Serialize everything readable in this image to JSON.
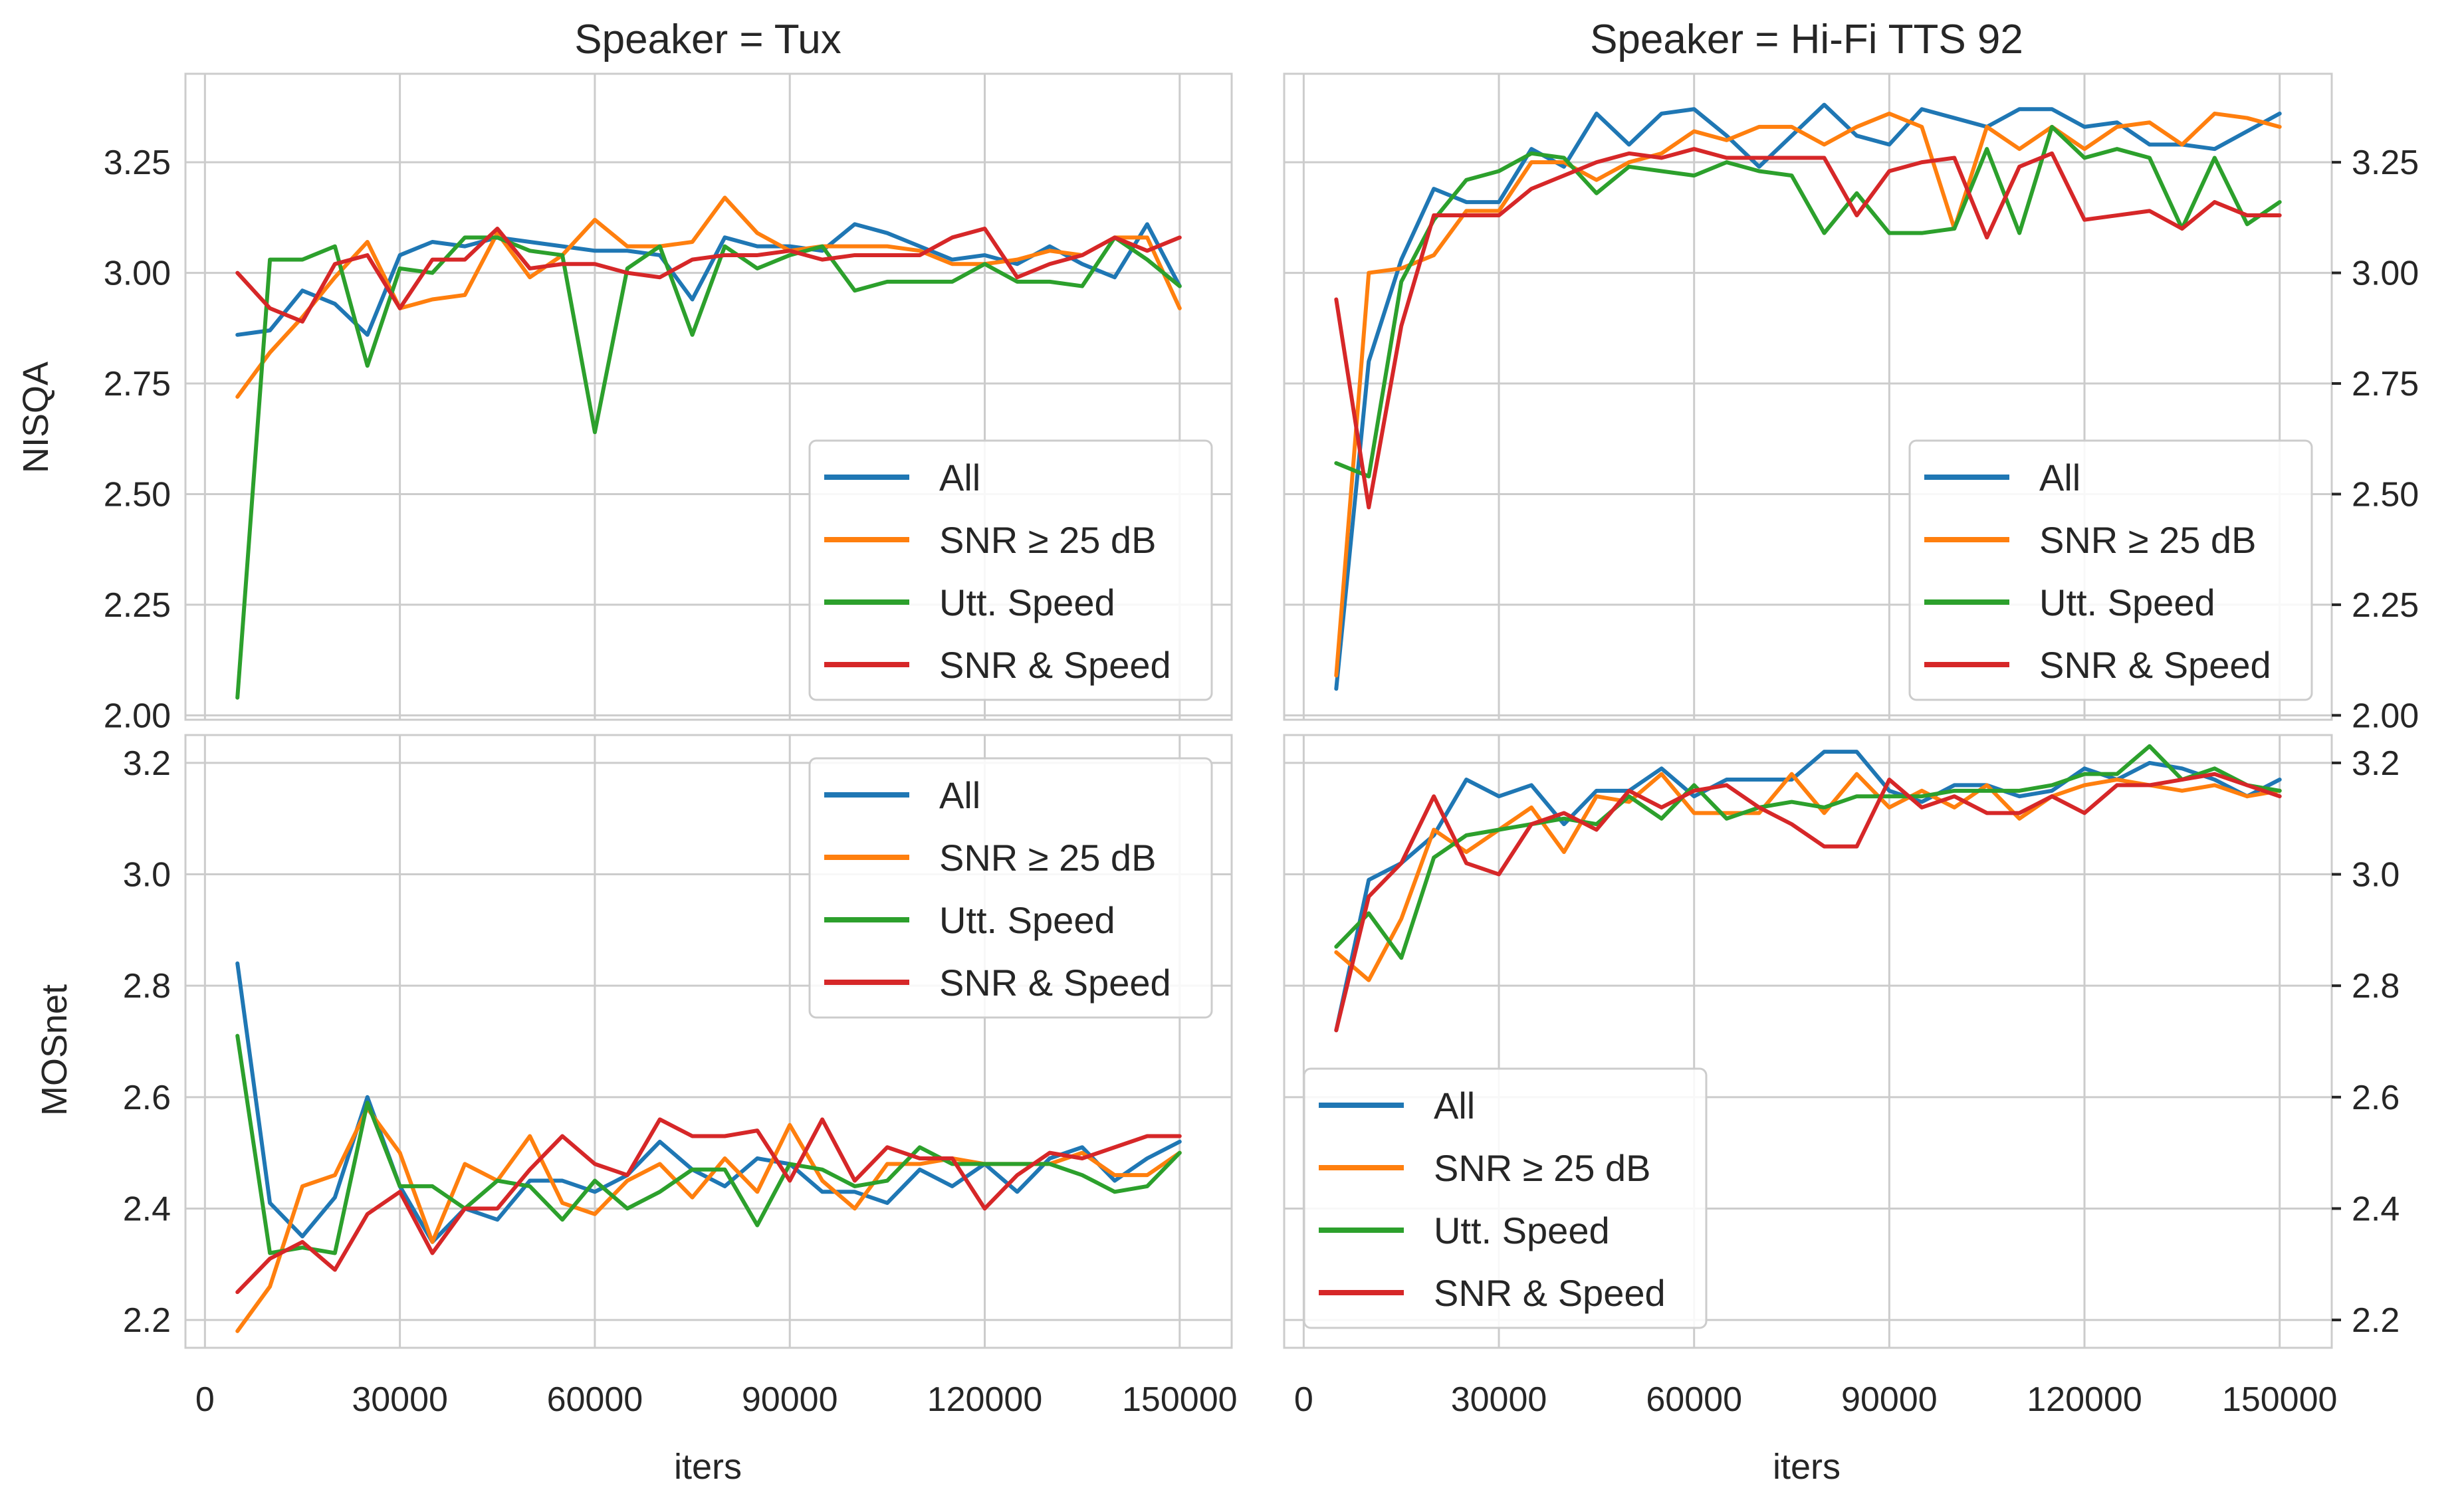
{
  "figure": {
    "row_labels": [
      "NISQA",
      "MOSnet"
    ],
    "col_titles": [
      "Speaker = Tux",
      "Speaker = Hi-Fi TTS 92"
    ],
    "xlabel": "iters",
    "legend_labels": [
      "All",
      "SNR ≥ 25 dB",
      "Utt. Speed",
      "SNR & Speed"
    ]
  },
  "colors": {
    "All": "#1f77b4",
    "SNR ≥ 25 dB": "#ff7f0e",
    "Utt. Speed": "#2ca02c",
    "SNR & Speed": "#d62728",
    "grid": "#cccccc",
    "text": "#262626"
  },
  "chart_data": [
    {
      "type": "line",
      "title": "Speaker = Tux",
      "xlabel": "",
      "ylabel": "NISQA",
      "xlim": [
        -3000,
        158000
      ],
      "ylim": [
        1.99,
        3.45
      ],
      "xticks": [
        0,
        30000,
        60000,
        90000,
        120000,
        150000
      ],
      "yticks": [
        2.0,
        2.25,
        2.5,
        2.75,
        3.0,
        3.25
      ],
      "ytick_labels": [
        "2.00",
        "2.25",
        "2.50",
        "2.75",
        "3.00",
        "3.25"
      ],
      "grid": true,
      "legend_position": "lower right",
      "x": [
        5000,
        10000,
        15000,
        20000,
        25000,
        30000,
        35000,
        40000,
        45000,
        50000,
        55000,
        60000,
        65000,
        70000,
        75000,
        80000,
        85000,
        90000,
        95000,
        100000,
        105000,
        110000,
        115000,
        120000,
        125000,
        130000,
        135000,
        140000,
        145000,
        150000
      ],
      "series": [
        {
          "name": "All",
          "values": [
            2.86,
            2.87,
            2.96,
            2.93,
            2.86,
            3.04,
            3.07,
            3.06,
            3.08,
            3.07,
            3.06,
            3.05,
            3.05,
            3.04,
            2.94,
            3.08,
            3.06,
            3.06,
            3.05,
            3.11,
            3.09,
            3.06,
            3.03,
            3.04,
            3.02,
            3.06,
            3.02,
            2.99,
            3.11,
            2.97
          ]
        },
        {
          "name": "SNR ≥ 25 dB",
          "values": [
            2.72,
            2.82,
            2.9,
            2.99,
            3.07,
            2.92,
            2.94,
            2.95,
            3.09,
            2.99,
            3.04,
            3.12,
            3.06,
            3.06,
            3.07,
            3.17,
            3.09,
            3.05,
            3.06,
            3.06,
            3.06,
            3.05,
            3.02,
            3.02,
            3.03,
            3.05,
            3.04,
            3.08,
            3.08,
            2.92
          ]
        },
        {
          "name": "Utt. Speed",
          "values": [
            2.04,
            3.03,
            3.03,
            3.06,
            2.79,
            3.01,
            3.0,
            3.08,
            3.08,
            3.05,
            3.04,
            2.64,
            3.01,
            3.06,
            2.86,
            3.06,
            3.01,
            3.04,
            3.06,
            2.96,
            2.98,
            2.98,
            2.98,
            3.02,
            2.98,
            2.98,
            2.97,
            3.08,
            3.03,
            2.97
          ]
        },
        {
          "name": "SNR & Speed",
          "values": [
            3.0,
            2.92,
            2.89,
            3.02,
            3.04,
            2.92,
            3.03,
            3.03,
            3.1,
            3.01,
            3.02,
            3.02,
            3.0,
            2.99,
            3.03,
            3.04,
            3.04,
            3.05,
            3.03,
            3.04,
            3.04,
            3.04,
            3.08,
            3.1,
            2.99,
            3.02,
            3.04,
            3.08,
            3.05,
            3.08
          ]
        }
      ]
    },
    {
      "type": "line",
      "title": "Speaker = Hi-Fi TTS 92",
      "xlabel": "",
      "ylabel": "",
      "xlim": [
        -3000,
        158000
      ],
      "ylim": [
        1.99,
        3.45
      ],
      "xticks": [
        0,
        30000,
        60000,
        90000,
        120000,
        150000
      ],
      "yticks": [
        2.0,
        2.25,
        2.5,
        2.75,
        3.0,
        3.25
      ],
      "ytick_labels": [
        "2.00",
        "2.25",
        "2.50",
        "2.75",
        "3.00",
        "3.25"
      ],
      "grid": true,
      "legend_position": "lower right",
      "x": [
        5000,
        10000,
        15000,
        20000,
        25000,
        30000,
        35000,
        40000,
        45000,
        50000,
        55000,
        60000,
        65000,
        70000,
        75000,
        80000,
        85000,
        90000,
        95000,
        100000,
        105000,
        110000,
        115000,
        120000,
        125000,
        130000,
        135000,
        140000,
        145000,
        150000
      ],
      "series": [
        {
          "name": "All",
          "values": [
            2.06,
            2.8,
            3.03,
            3.19,
            3.16,
            3.16,
            3.28,
            3.24,
            3.36,
            3.29,
            3.36,
            3.37,
            3.31,
            3.24,
            3.31,
            3.38,
            3.31,
            3.29,
            3.37,
            3.35,
            3.33,
            3.37,
            3.37,
            3.33,
            3.34,
            3.29,
            3.29,
            3.28,
            3.32,
            3.36
          ]
        },
        {
          "name": "SNR ≥ 25 dB",
          "values": [
            2.09,
            3.0,
            3.01,
            3.04,
            3.14,
            3.14,
            3.25,
            3.25,
            3.21,
            3.25,
            3.27,
            3.32,
            3.3,
            3.33,
            3.33,
            3.29,
            3.33,
            3.36,
            3.33,
            3.1,
            3.33,
            3.28,
            3.33,
            3.28,
            3.33,
            3.34,
            3.29,
            3.36,
            3.35,
            3.33
          ]
        },
        {
          "name": "Utt. Speed",
          "values": [
            2.57,
            2.54,
            2.98,
            3.12,
            3.21,
            3.23,
            3.27,
            3.26,
            3.18,
            3.24,
            3.23,
            3.22,
            3.25,
            3.23,
            3.22,
            3.09,
            3.18,
            3.09,
            3.09,
            3.1,
            3.28,
            3.09,
            3.33,
            3.26,
            3.28,
            3.26,
            3.1,
            3.26,
            3.11,
            3.16
          ]
        },
        {
          "name": "SNR & Speed",
          "values": [
            2.94,
            2.47,
            2.88,
            3.13,
            3.13,
            3.13,
            3.19,
            3.22,
            3.25,
            3.27,
            3.26,
            3.28,
            3.26,
            3.26,
            3.26,
            3.26,
            3.13,
            3.23,
            3.25,
            3.26,
            3.08,
            3.24,
            3.27,
            3.12,
            3.13,
            3.14,
            3.1,
            3.16,
            3.13,
            3.13
          ]
        }
      ]
    },
    {
      "type": "line",
      "title": "",
      "xlabel": "iters",
      "ylabel": "MOSnet",
      "xlim": [
        -3000,
        158000
      ],
      "ylim": [
        2.15,
        3.25
      ],
      "xticks": [
        0,
        30000,
        60000,
        90000,
        120000,
        150000
      ],
      "yticks": [
        2.2,
        2.4,
        2.6,
        2.8,
        3.0,
        3.2
      ],
      "ytick_labels": [
        "2.2",
        "2.4",
        "2.6",
        "2.8",
        "3.0",
        "3.2"
      ],
      "grid": true,
      "legend_position": "upper right",
      "x": [
        5000,
        10000,
        15000,
        20000,
        25000,
        30000,
        35000,
        40000,
        45000,
        50000,
        55000,
        60000,
        65000,
        70000,
        75000,
        80000,
        85000,
        90000,
        95000,
        100000,
        105000,
        110000,
        115000,
        120000,
        125000,
        130000,
        135000,
        140000,
        145000,
        150000
      ],
      "series": [
        {
          "name": "All",
          "values": [
            2.84,
            2.41,
            2.35,
            2.42,
            2.6,
            2.44,
            2.34,
            2.4,
            2.38,
            2.45,
            2.45,
            2.43,
            2.46,
            2.52,
            2.47,
            2.44,
            2.49,
            2.48,
            2.43,
            2.43,
            2.41,
            2.47,
            2.44,
            2.48,
            2.43,
            2.49,
            2.51,
            2.45,
            2.49,
            2.52
          ]
        },
        {
          "name": "SNR ≥ 25 dB",
          "values": [
            2.18,
            2.26,
            2.44,
            2.46,
            2.58,
            2.5,
            2.34,
            2.48,
            2.45,
            2.53,
            2.41,
            2.39,
            2.45,
            2.48,
            2.42,
            2.49,
            2.43,
            2.55,
            2.45,
            2.4,
            2.48,
            2.48,
            2.49,
            2.48,
            2.48,
            2.48,
            2.5,
            2.46,
            2.46,
            2.5
          ]
        },
        {
          "name": "Utt. Speed",
          "values": [
            2.71,
            2.32,
            2.33,
            2.32,
            2.59,
            2.44,
            2.44,
            2.4,
            2.45,
            2.44,
            2.38,
            2.45,
            2.4,
            2.43,
            2.47,
            2.47,
            2.37,
            2.48,
            2.47,
            2.44,
            2.45,
            2.51,
            2.48,
            2.48,
            2.48,
            2.48,
            2.46,
            2.43,
            2.44,
            2.5
          ]
        },
        {
          "name": "SNR & Speed",
          "values": [
            2.25,
            2.31,
            2.34,
            2.29,
            2.39,
            2.43,
            2.32,
            2.4,
            2.4,
            2.47,
            2.53,
            2.48,
            2.46,
            2.56,
            2.53,
            2.53,
            2.54,
            2.45,
            2.56,
            2.45,
            2.51,
            2.49,
            2.49,
            2.4,
            2.46,
            2.5,
            2.49,
            2.51,
            2.53,
            2.53
          ]
        }
      ]
    },
    {
      "type": "line",
      "title": "",
      "xlabel": "iters",
      "ylabel": "",
      "xlim": [
        -3000,
        158000
      ],
      "ylim": [
        2.15,
        3.25
      ],
      "xticks": [
        0,
        30000,
        60000,
        90000,
        120000,
        150000
      ],
      "yticks": [
        2.2,
        2.4,
        2.6,
        2.8,
        3.0,
        3.2
      ],
      "ytick_labels": [
        "2.2",
        "2.4",
        "2.6",
        "2.8",
        "3.0",
        "3.2"
      ],
      "grid": true,
      "legend_position": "lower left",
      "x": [
        5000,
        10000,
        15000,
        20000,
        25000,
        30000,
        35000,
        40000,
        45000,
        50000,
        55000,
        60000,
        65000,
        70000,
        75000,
        80000,
        85000,
        90000,
        95000,
        100000,
        105000,
        110000,
        115000,
        120000,
        125000,
        130000,
        135000,
        140000,
        145000,
        150000
      ],
      "series": [
        {
          "name": "All",
          "values": [
            2.72,
            2.99,
            3.02,
            3.07,
            3.17,
            3.14,
            3.16,
            3.09,
            3.15,
            3.15,
            3.19,
            3.14,
            3.17,
            3.17,
            3.17,
            3.22,
            3.22,
            3.15,
            3.13,
            3.16,
            3.16,
            3.14,
            3.15,
            3.19,
            3.17,
            3.2,
            3.19,
            3.17,
            3.14,
            3.17
          ]
        },
        {
          "name": "SNR ≥ 25 dB",
          "values": [
            2.86,
            2.81,
            2.92,
            3.08,
            3.04,
            3.08,
            3.12,
            3.04,
            3.14,
            3.13,
            3.18,
            3.11,
            3.11,
            3.11,
            3.18,
            3.11,
            3.18,
            3.12,
            3.15,
            3.12,
            3.16,
            3.1,
            3.14,
            3.16,
            3.17,
            3.16,
            3.15,
            3.16,
            3.14,
            3.15
          ]
        },
        {
          "name": "Utt. Speed",
          "values": [
            2.87,
            2.93,
            2.85,
            3.03,
            3.07,
            3.08,
            3.09,
            3.1,
            3.09,
            3.14,
            3.1,
            3.16,
            3.1,
            3.12,
            3.13,
            3.12,
            3.14,
            3.14,
            3.14,
            3.15,
            3.15,
            3.15,
            3.16,
            3.18,
            3.18,
            3.23,
            3.17,
            3.19,
            3.16,
            3.15
          ]
        },
        {
          "name": "SNR & Speed",
          "values": [
            2.72,
            2.96,
            3.02,
            3.14,
            3.02,
            3.0,
            3.09,
            3.11,
            3.08,
            3.15,
            3.12,
            3.15,
            3.16,
            3.12,
            3.09,
            3.05,
            3.05,
            3.17,
            3.12,
            3.14,
            3.11,
            3.11,
            3.14,
            3.11,
            3.16,
            3.16,
            3.17,
            3.18,
            3.16,
            3.14
          ]
        }
      ]
    }
  ]
}
